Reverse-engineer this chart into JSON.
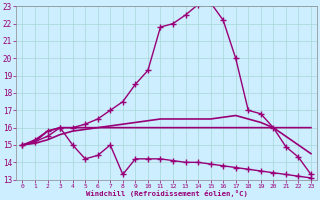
{
  "xlabel": "Windchill (Refroidissement éolien,°C)",
  "xlim": [
    -0.5,
    23.5
  ],
  "ylim": [
    13,
    23
  ],
  "yticks": [
    13,
    14,
    15,
    16,
    17,
    18,
    19,
    20,
    21,
    22,
    23
  ],
  "xticks": [
    0,
    1,
    2,
    3,
    4,
    5,
    6,
    7,
    8,
    9,
    10,
    11,
    12,
    13,
    14,
    15,
    16,
    17,
    18,
    19,
    20,
    21,
    22,
    23
  ],
  "bg_color": "#cceeff",
  "line_color": "#990077",
  "series": [
    {
      "x": [
        0,
        1,
        2,
        3,
        4,
        5,
        6,
        7,
        8,
        9,
        10,
        11,
        12,
        13,
        14,
        15,
        16,
        17,
        18,
        19,
        20,
        21,
        22,
        23
      ],
      "y": [
        15.0,
        15.2,
        15.5,
        16.0,
        16.0,
        16.2,
        16.5,
        17.0,
        17.5,
        18.5,
        19.3,
        21.8,
        22.0,
        22.5,
        23.1,
        23.2,
        22.2,
        20.0,
        17.0,
        16.8,
        16.0,
        14.9,
        14.3,
        13.3
      ],
      "marker": "+",
      "markersize": 4,
      "linewidth": 1.0
    },
    {
      "x": [
        0,
        1,
        2,
        3,
        4,
        5,
        6,
        7,
        8,
        9,
        10,
        11,
        12,
        13,
        14,
        15,
        16,
        17,
        18,
        19,
        20,
        21,
        22,
        23
      ],
      "y": [
        15.0,
        15.2,
        15.8,
        16.0,
        16.0,
        16.0,
        16.0,
        16.0,
        16.0,
        16.0,
        16.0,
        16.0,
        16.0,
        16.0,
        16.0,
        16.0,
        16.0,
        16.0,
        16.0,
        16.0,
        16.0,
        16.0,
        16.0,
        16.0
      ],
      "marker": null,
      "markersize": 0,
      "linewidth": 1.2
    },
    {
      "x": [
        0,
        1,
        2,
        3,
        4,
        5,
        6,
        7,
        8,
        9,
        10,
        11,
        12,
        13,
        14,
        15,
        16,
        17,
        18,
        19,
        20,
        21,
        22,
        23
      ],
      "y": [
        15.0,
        15.1,
        15.3,
        15.6,
        15.8,
        15.9,
        16.0,
        16.1,
        16.2,
        16.3,
        16.4,
        16.5,
        16.5,
        16.5,
        16.5,
        16.5,
        16.6,
        16.7,
        16.5,
        16.3,
        16.0,
        15.5,
        15.0,
        14.5
      ],
      "marker": null,
      "markersize": 0,
      "linewidth": 1.2
    },
    {
      "x": [
        0,
        1,
        2,
        3,
        4,
        5,
        6,
        7,
        8,
        9,
        10,
        11,
        12,
        13,
        14,
        15,
        16,
        17,
        18,
        19,
        20,
        21,
        22,
        23
      ],
      "y": [
        15.0,
        15.3,
        15.8,
        16.0,
        15.0,
        14.2,
        14.4,
        15.0,
        13.3,
        14.2,
        14.2,
        14.2,
        14.1,
        14.0,
        14.0,
        13.9,
        13.8,
        13.7,
        13.6,
        13.5,
        13.4,
        13.3,
        13.2,
        13.1
      ],
      "marker": "+",
      "markersize": 4,
      "linewidth": 1.0
    }
  ]
}
